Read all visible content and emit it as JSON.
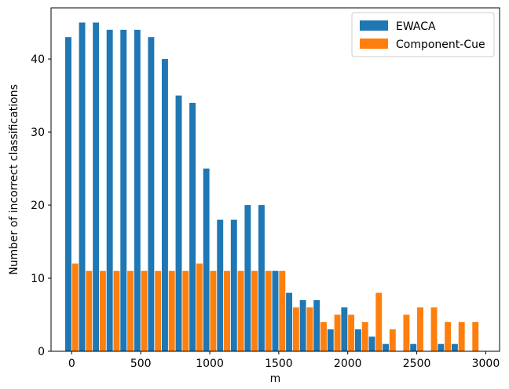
{
  "chart_data": {
    "type": "bar",
    "title": "",
    "xlabel": "m",
    "ylabel": "Number of incorrect classifications",
    "xlim": [
      -150,
      3100
    ],
    "ylim": [
      0,
      47
    ],
    "xticks": [
      0,
      500,
      1000,
      1500,
      2000,
      2500,
      3000
    ],
    "yticks": [
      0,
      10,
      20,
      30,
      40
    ],
    "bar_width_data": 45,
    "grid": false,
    "legend_position": "top-right",
    "series": [
      {
        "name": "EWACA",
        "color": "#1f77b4",
        "offset": -25,
        "x": [
          0,
          100,
          200,
          300,
          400,
          500,
          600,
          700,
          800,
          900,
          1000,
          1100,
          1200,
          1300,
          1400,
          1500,
          1600,
          1700,
          1800,
          1900,
          2000,
          2100,
          2200,
          2300,
          2400,
          2500,
          2600,
          2700,
          2800,
          2900
        ],
        "values": [
          43,
          45,
          45,
          44,
          44,
          44,
          43,
          40,
          35,
          34,
          25,
          18,
          18,
          20,
          20,
          11,
          8,
          7,
          7,
          3,
          6,
          3,
          2,
          1,
          0,
          1,
          0,
          1,
          1,
          0
        ]
      },
      {
        "name": "Component-Cue",
        "color": "#ff7f0e",
        "offset": 25,
        "x": [
          0,
          100,
          200,
          300,
          400,
          500,
          600,
          700,
          800,
          900,
          1000,
          1100,
          1200,
          1300,
          1400,
          1500,
          1600,
          1700,
          1800,
          1900,
          2000,
          2100,
          2200,
          2300,
          2400,
          2500,
          2600,
          2700,
          2800,
          2900
        ],
        "values": [
          12,
          11,
          11,
          11,
          11,
          11,
          11,
          11,
          11,
          12,
          11,
          11,
          11,
          11,
          11,
          11,
          6,
          6,
          4,
          5,
          5,
          4,
          8,
          3,
          5,
          6,
          6,
          4,
          4,
          4
        ]
      }
    ]
  }
}
